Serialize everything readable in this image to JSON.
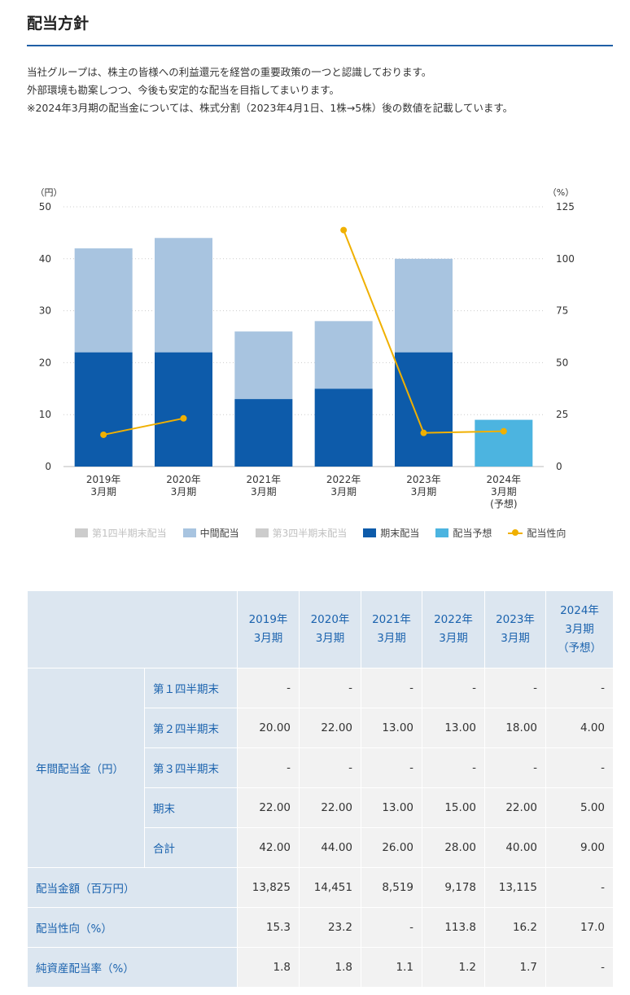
{
  "page": {
    "title": "配当方針",
    "intro": [
      "当社グループは、株主の皆様への利益還元を経営の重要政策の一つと認識しております。",
      "外部環境も勘案しつつ、今後も安定的な配当を目指してまいります。",
      "※2024年3月期の配当金については、株式分割（2023年4月1日、1株→5株）後の数値を記載しています。"
    ]
  },
  "colors": {
    "interim": "#a8c4e0",
    "year_end": "#0d5baa",
    "forecast": "#4cb4e0",
    "payout": "#f0b000",
    "inactive": "#cccccc",
    "grid": "#cccccc",
    "axis_text": "#333333",
    "accent": "#1f5fa6"
  },
  "chart_data": {
    "type": "bar",
    "stacked": true,
    "categories": [
      [
        "2019年",
        "3月期"
      ],
      [
        "2020年",
        "3月期"
      ],
      [
        "2021年",
        "3月期"
      ],
      [
        "2022年",
        "3月期"
      ],
      [
        "2023年",
        "3月期"
      ],
      [
        "2024年",
        "3月期",
        "(予想)"
      ]
    ],
    "y_unit": "（円）",
    "y2_unit": "（%）",
    "ylim": [
      0,
      50
    ],
    "y_ticks": [
      0,
      10,
      20,
      30,
      40,
      50
    ],
    "y2lim": [
      0,
      125
    ],
    "y2_ticks": [
      0,
      25,
      50,
      75,
      100,
      125
    ],
    "grid": true,
    "legend_position": "bottom",
    "series": [
      {
        "name": "第1四半期末配当",
        "kind": "bar",
        "active": false,
        "values": [
          0,
          0,
          0,
          0,
          0,
          0
        ]
      },
      {
        "name": "中間配当",
        "kind": "bar",
        "active": true,
        "values": [
          20,
          22,
          13,
          13,
          18,
          null
        ]
      },
      {
        "name": "第3四半期末配当",
        "kind": "bar",
        "active": false,
        "values": [
          0,
          0,
          0,
          0,
          0,
          0
        ]
      },
      {
        "name": "期末配当",
        "kind": "bar",
        "active": true,
        "values": [
          22,
          22,
          13,
          15,
          22,
          null
        ]
      },
      {
        "name": "配当予想",
        "kind": "bar",
        "active": true,
        "values": [
          null,
          null,
          null,
          null,
          null,
          9
        ]
      },
      {
        "name": "配当性向",
        "kind": "line",
        "axis": "y2",
        "active": true,
        "values": [
          15.3,
          23.2,
          null,
          113.8,
          16.2,
          17.0
        ]
      }
    ]
  },
  "table": {
    "years": [
      [
        "2019年",
        "3月期"
      ],
      [
        "2020年",
        "3月期"
      ],
      [
        "2021年",
        "3月期"
      ],
      [
        "2022年",
        "3月期"
      ],
      [
        "2023年",
        "3月期"
      ],
      [
        "2024年",
        "3月期",
        "（予想）"
      ]
    ],
    "dividend_group_label": "年間配当金（円）",
    "dividend_rows": [
      {
        "label": "第１四半期末",
        "values": [
          "-",
          "-",
          "-",
          "-",
          "-",
          "-"
        ]
      },
      {
        "label": "第２四半期末",
        "values": [
          "20.00",
          "22.00",
          "13.00",
          "13.00",
          "18.00",
          "4.00"
        ]
      },
      {
        "label": "第３四半期末",
        "values": [
          "-",
          "-",
          "-",
          "-",
          "-",
          "-"
        ]
      },
      {
        "label": "期末",
        "values": [
          "22.00",
          "22.00",
          "13.00",
          "15.00",
          "22.00",
          "5.00"
        ]
      },
      {
        "label": "合計",
        "values": [
          "42.00",
          "44.00",
          "26.00",
          "28.00",
          "40.00",
          "9.00"
        ]
      }
    ],
    "other_rows": [
      {
        "label": "配当金額（百万円）",
        "values": [
          "13,825",
          "14,451",
          "8,519",
          "9,178",
          "13,115",
          "-"
        ]
      },
      {
        "label": "配当性向（%）",
        "values": [
          "15.3",
          "23.2",
          "-",
          "113.8",
          "16.2",
          "17.0"
        ]
      },
      {
        "label": "純資産配当率（%）",
        "values": [
          "1.8",
          "1.8",
          "1.1",
          "1.2",
          "1.7",
          "-"
        ]
      }
    ]
  }
}
